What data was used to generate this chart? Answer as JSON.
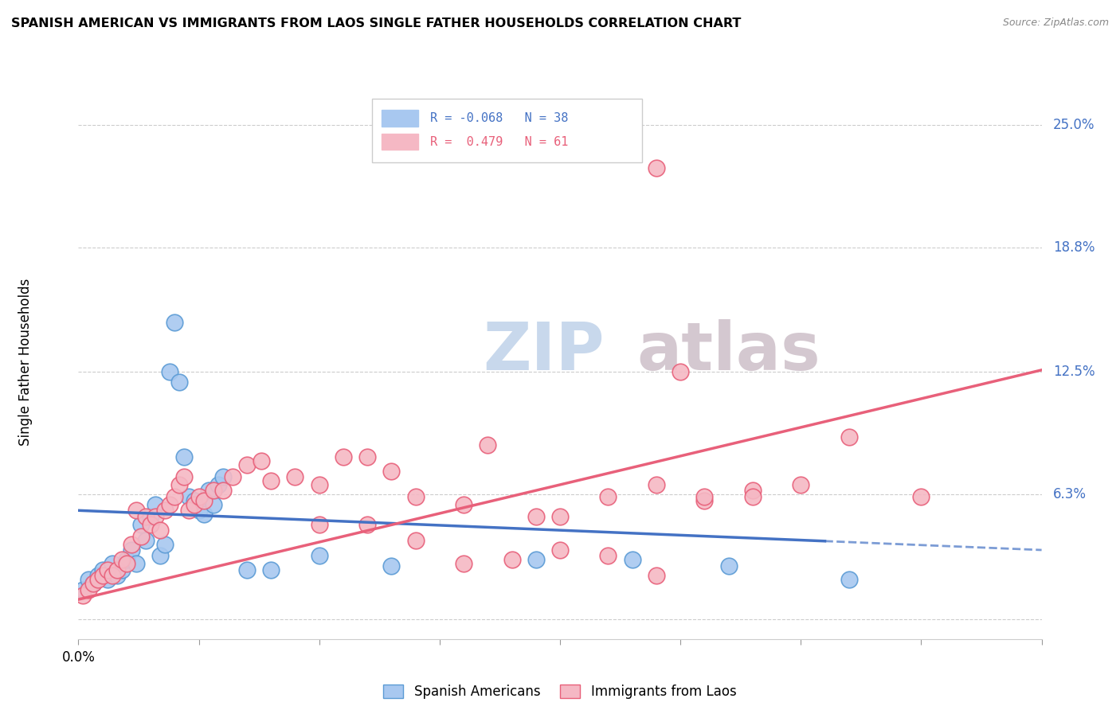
{
  "title": "SPANISH AMERICAN VS IMMIGRANTS FROM LAOS SINGLE FATHER HOUSEHOLDS CORRELATION CHART",
  "source": "Source: ZipAtlas.com",
  "ylabel": "Single Father Households",
  "y_tick_labels": [
    "25.0%",
    "18.8%",
    "12.5%",
    "6.3%"
  ],
  "y_tick_values": [
    0.25,
    0.188,
    0.125,
    0.063
  ],
  "xlim": [
    0.0,
    0.2
  ],
  "ylim": [
    -0.01,
    0.27
  ],
  "legend_blue_r": "-0.068",
  "legend_blue_n": "38",
  "legend_pink_r": "0.479",
  "legend_pink_n": "61",
  "blue_color": "#A8C8F0",
  "pink_color": "#F5B8C4",
  "blue_edge_color": "#5B9BD5",
  "pink_edge_color": "#E8607A",
  "blue_line_color": "#4472C4",
  "pink_line_color": "#E8607A",
  "background_color": "#FFFFFF",
  "watermark_zip": "ZIP",
  "watermark_atlas": "atlas",
  "blue_scatter_x": [
    0.001,
    0.002,
    0.003,
    0.004,
    0.005,
    0.006,
    0.007,
    0.008,
    0.009,
    0.01,
    0.011,
    0.012,
    0.013,
    0.014,
    0.015,
    0.016,
    0.017,
    0.018,
    0.019,
    0.02,
    0.021,
    0.022,
    0.023,
    0.024,
    0.025,
    0.026,
    0.027,
    0.028,
    0.029,
    0.03,
    0.035,
    0.04,
    0.05,
    0.065,
    0.095,
    0.115,
    0.135,
    0.16
  ],
  "blue_scatter_y": [
    0.015,
    0.02,
    0.018,
    0.022,
    0.025,
    0.02,
    0.028,
    0.022,
    0.025,
    0.03,
    0.035,
    0.028,
    0.048,
    0.04,
    0.052,
    0.058,
    0.032,
    0.038,
    0.125,
    0.15,
    0.12,
    0.082,
    0.062,
    0.06,
    0.055,
    0.053,
    0.065,
    0.058,
    0.068,
    0.072,
    0.025,
    0.025,
    0.032,
    0.027,
    0.03,
    0.03,
    0.027,
    0.02
  ],
  "pink_scatter_x": [
    0.001,
    0.002,
    0.003,
    0.004,
    0.005,
    0.006,
    0.007,
    0.008,
    0.009,
    0.01,
    0.011,
    0.012,
    0.013,
    0.014,
    0.015,
    0.016,
    0.017,
    0.018,
    0.019,
    0.02,
    0.021,
    0.022,
    0.023,
    0.024,
    0.025,
    0.026,
    0.028,
    0.03,
    0.032,
    0.035,
    0.038,
    0.04,
    0.045,
    0.05,
    0.055,
    0.06,
    0.065,
    0.07,
    0.08,
    0.085,
    0.095,
    0.1,
    0.11,
    0.12,
    0.125,
    0.13,
    0.14,
    0.15,
    0.16,
    0.175,
    0.05,
    0.06,
    0.07,
    0.08,
    0.09,
    0.1,
    0.11,
    0.12,
    0.13,
    0.14,
    0.12
  ],
  "pink_scatter_y": [
    0.012,
    0.015,
    0.018,
    0.02,
    0.022,
    0.025,
    0.022,
    0.025,
    0.03,
    0.028,
    0.038,
    0.055,
    0.042,
    0.052,
    0.048,
    0.052,
    0.045,
    0.055,
    0.058,
    0.062,
    0.068,
    0.072,
    0.055,
    0.058,
    0.062,
    0.06,
    0.065,
    0.065,
    0.072,
    0.078,
    0.08,
    0.07,
    0.072,
    0.068,
    0.082,
    0.082,
    0.075,
    0.062,
    0.058,
    0.088,
    0.052,
    0.052,
    0.062,
    0.068,
    0.125,
    0.06,
    0.065,
    0.068,
    0.092,
    0.062,
    0.048,
    0.048,
    0.04,
    0.028,
    0.03,
    0.035,
    0.032,
    0.022,
    0.062,
    0.062,
    0.228
  ]
}
